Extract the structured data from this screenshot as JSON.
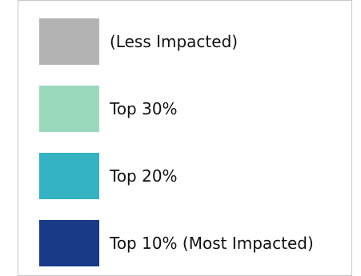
{
  "chart_data": {
    "type": "legend",
    "title": "",
    "legend": [
      {
        "label": "(Less Impacted)",
        "color": "#b3b3b3"
      },
      {
        "label": "Top 30%",
        "color": "#9bd9bd"
      },
      {
        "label": "Top 20%",
        "color": "#33b3c3"
      },
      {
        "label": "Top 10% (Most Impacted)",
        "color": "#193a87"
      }
    ]
  }
}
